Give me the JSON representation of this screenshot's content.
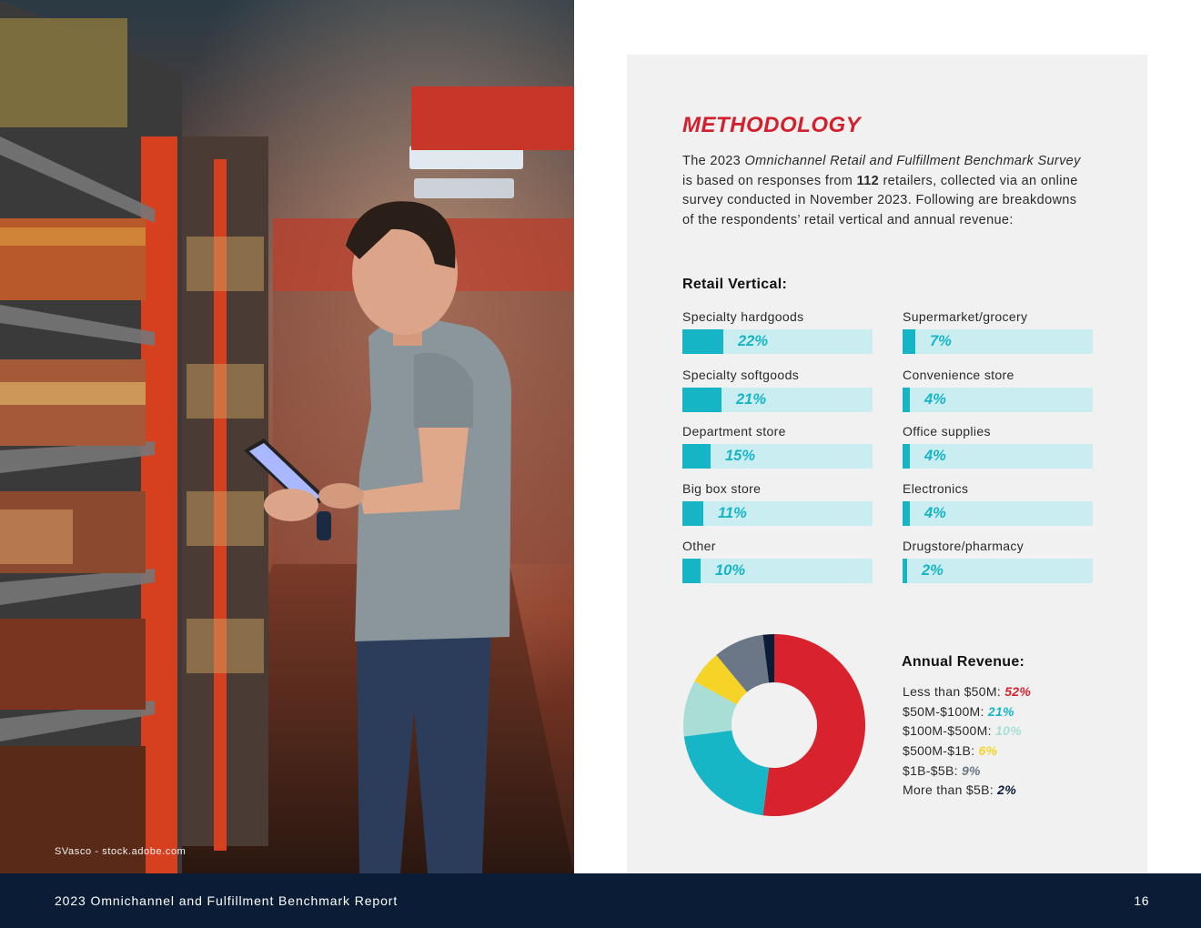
{
  "photo": {
    "alt": "Shopper reading a tablet in a store aisle",
    "credit": "SVasco - stock.adobe.com"
  },
  "methodology": {
    "heading": "METHODOLOGY",
    "intro": {
      "part1": "The 2023 ",
      "survey_title": "Omnichannel Retail and Fulfillment Benchmark Survey",
      "part2": " is based on responses from ",
      "respondents": "112",
      "part3": " retailers, collected via an online survey conducted in November 2023. Following are breakdowns of the respondents’ retail vertical and annual revenue:"
    },
    "retail_vertical": {
      "title": "Retail Vertical:",
      "color_fill": "#15b5c6",
      "color_track": "#c9edf1",
      "items": [
        {
          "label": "Specialty hardgoods",
          "pct_label": "22%",
          "value": 22
        },
        {
          "label": "Supermarket/grocery",
          "pct_label": "7%",
          "value": 7
        },
        {
          "label": "Specialty softgoods",
          "pct_label": "21%",
          "value": 21
        },
        {
          "label": "Convenience store",
          "pct_label": "4%",
          "value": 4
        },
        {
          "label": "Department store",
          "pct_label": "15%",
          "value": 15
        },
        {
          "label": "Office supplies",
          "pct_label": "4%",
          "value": 4
        },
        {
          "label": "Big box store",
          "pct_label": "11%",
          "value": 11
        },
        {
          "label": "Electronics",
          "pct_label": "4%",
          "value": 4
        },
        {
          "label": "Other",
          "pct_label": "10%",
          "value": 10
        },
        {
          "label": "Drugstore/pharmacy",
          "pct_label": "2%",
          "value": 2
        }
      ]
    },
    "annual_revenue": {
      "title": "Annual Revenue:",
      "items": [
        {
          "label": "Less than $50M: ",
          "pct_label": "52%",
          "value": 52,
          "color": "#d8222d"
        },
        {
          "label": "$50M-$100M: ",
          "pct_label": "21%",
          "value": 21,
          "color": "#17b6c7"
        },
        {
          "label": "$100M-$500M: ",
          "pct_label": "10%",
          "value": 10,
          "color": "#a8ded6"
        },
        {
          "label": "$500M-$1B: ",
          "pct_label": "6%",
          "value": 6,
          "color": "#f6d327"
        },
        {
          "label": "$1B-$5B: ",
          "pct_label": "9%",
          "value": 9,
          "color": "#6b7686"
        },
        {
          "label": "More than $5B: ",
          "pct_label": "2%",
          "value": 2,
          "color": "#0b1c36"
        }
      ]
    }
  },
  "footer": {
    "title": "2023 Omnichannel and Fulfillment Benchmark Report",
    "page_number": "16"
  }
}
